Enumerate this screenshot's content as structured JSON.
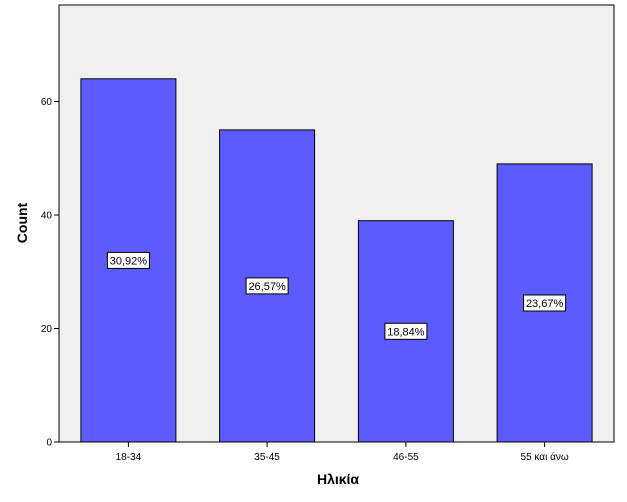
{
  "chart_data": {
    "type": "bar",
    "categories": [
      "18-34",
      "35-45",
      "46-55",
      "55 και άνω"
    ],
    "values": [
      64,
      55,
      39,
      49
    ],
    "data_labels": [
      "30,92%",
      "26,57%",
      "18,84%",
      "23,67%"
    ],
    "xlabel": "Ηλικία",
    "ylabel": "Count",
    "ylim": [
      0,
      77
    ],
    "yticks": [
      0,
      20,
      40,
      60
    ],
    "grid": false,
    "colors": {
      "bar": "#5b5bff",
      "plot_background": "#f0f0f0"
    }
  }
}
